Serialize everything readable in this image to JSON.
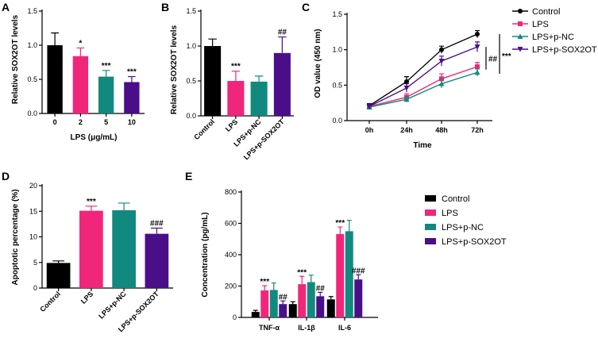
{
  "panels": {
    "A": "A",
    "B": "B",
    "C": "C",
    "D": "D",
    "E": "E"
  },
  "chart_data": [
    {
      "id": "A",
      "type": "bar",
      "title": "",
      "ylabel": "Relative SOX2OT levels",
      "xlabel": "LPS (μg/mL)",
      "categories": [
        "0",
        "2",
        "5",
        "10"
      ],
      "values": [
        1.0,
        0.84,
        0.54,
        0.46
      ],
      "errors": [
        0.18,
        0.12,
        0.09,
        0.08
      ],
      "significance": [
        "",
        "*",
        "***",
        "***"
      ],
      "colors": [
        "#000000",
        "#f0267a",
        "#12897f",
        "#4a0f88"
      ],
      "ylim": [
        0,
        1.5
      ],
      "yticks": [
        "0.0",
        "0.5",
        "1.0",
        "1.5"
      ]
    },
    {
      "id": "B",
      "type": "bar",
      "title": "",
      "ylabel": "Relative SOX2OT levels",
      "xlabel": "",
      "categories": [
        "Control",
        "LPS",
        "LPS+p-NC",
        "LPS+p-SOX2OT"
      ],
      "values": [
        1.0,
        0.5,
        0.49,
        0.9
      ],
      "errors": [
        0.1,
        0.14,
        0.08,
        0.23
      ],
      "significance": [
        "",
        "***",
        "",
        "##"
      ],
      "colors": [
        "#000000",
        "#f0267a",
        "#12897f",
        "#4a0f88"
      ],
      "ylim": [
        0,
        1.5
      ],
      "yticks": [
        "0.0",
        "0.5",
        "1.0",
        "1.5"
      ]
    },
    {
      "id": "C",
      "type": "line",
      "title": "",
      "ylabel": "OD value (450 nm)",
      "xlabel": "Time",
      "categories": [
        "0h",
        "24h",
        "48h",
        "72h"
      ],
      "series": [
        {
          "name": "Control",
          "values": [
            0.21,
            0.55,
            1.0,
            1.22
          ],
          "errors": [
            0.03,
            0.07,
            0.05,
            0.05
          ],
          "color": "#000000",
          "marker": "circle"
        },
        {
          "name": "LPS",
          "values": [
            0.2,
            0.33,
            0.59,
            0.76
          ],
          "errors": [
            0.03,
            0.05,
            0.07,
            0.06
          ],
          "color": "#f0267a",
          "marker": "square"
        },
        {
          "name": "LPS+p-NC",
          "values": [
            0.19,
            0.3,
            0.52,
            0.68
          ],
          "errors": [
            0.03,
            0.04,
            0.06,
            0.05
          ],
          "color": "#12897f",
          "marker": "triangle-up"
        },
        {
          "name": "LPS+p-SOX2OT",
          "values": [
            0.2,
            0.46,
            0.84,
            1.04
          ],
          "errors": [
            0.03,
            0.06,
            0.07,
            0.07
          ],
          "color": "#4a0f88",
          "marker": "triangle-down"
        }
      ],
      "annotations": [
        "##",
        "***"
      ],
      "ylim": [
        0,
        1.5
      ],
      "yticks": [
        "0.0",
        "0.5",
        "1.0",
        "1.5"
      ],
      "legend_position": "top-right"
    },
    {
      "id": "D",
      "type": "bar",
      "title": "",
      "ylabel": "Apoptotic percentage (%)",
      "xlabel": "",
      "categories": [
        "Control",
        "LPS",
        "LPS+p-NC",
        "LPS+p-SOX2OT"
      ],
      "values": [
        4.9,
        15.1,
        15.2,
        10.6
      ],
      "errors": [
        0.4,
        0.9,
        1.4,
        1.1
      ],
      "significance": [
        "",
        "***",
        "",
        "###"
      ],
      "colors": [
        "#000000",
        "#f0267a",
        "#12897f",
        "#4a0f88"
      ],
      "ylim": [
        0,
        20
      ],
      "yticks": [
        "0",
        "5",
        "10",
        "15",
        "20"
      ]
    },
    {
      "id": "E",
      "type": "bar",
      "title": "",
      "ylabel": "Concentration (pg/mL)",
      "xlabel": "",
      "categories": [
        "TNF-α",
        "IL-1β",
        "IL-6"
      ],
      "series": [
        {
          "name": "Control",
          "values": [
            35,
            85,
            115
          ],
          "errors": [
            10,
            15,
            18
          ],
          "color": "#000000"
        },
        {
          "name": "LPS",
          "values": [
            172,
            212,
            532
          ],
          "errors": [
            30,
            50,
            45
          ],
          "color": "#f0267a"
        },
        {
          "name": "LPS+p-NC",
          "values": [
            175,
            225,
            550
          ],
          "errors": [
            45,
            45,
            70
          ],
          "color": "#12897f"
        },
        {
          "name": "LPS+p-SOX2OT",
          "values": [
            85,
            135,
            242
          ],
          "errors": [
            20,
            25,
            30
          ],
          "color": "#4a0f88"
        }
      ],
      "significance": [
        [
          "",
          "***",
          "",
          "##"
        ],
        [
          "",
          "***",
          "",
          "##"
        ],
        [
          "",
          "***",
          "",
          "###"
        ]
      ],
      "ylim": [
        0,
        800
      ],
      "yticks": [
        "0",
        "200",
        "400",
        "600",
        "800"
      ],
      "legend_position": "right"
    }
  ]
}
